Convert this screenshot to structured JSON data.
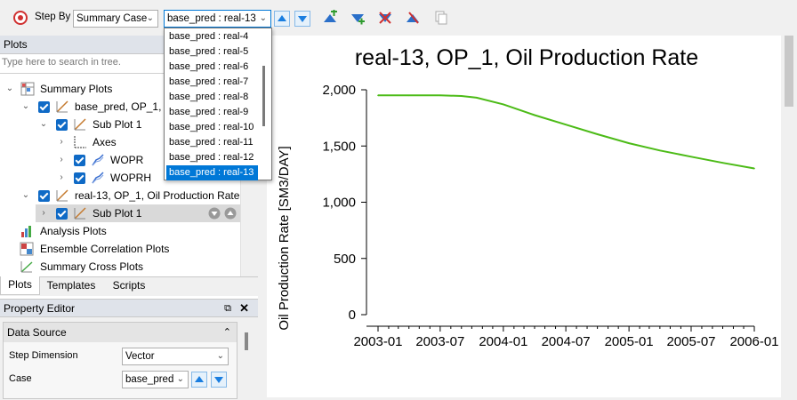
{
  "toolbar": {
    "step_by_label": "Step By",
    "step_by_value": "Summary Case",
    "case_value": "base_pred : real-13"
  },
  "case_dropdown": {
    "options": [
      "base_pred : real-4",
      "base_pred : real-5",
      "base_pred : real-6",
      "base_pred : real-7",
      "base_pred : real-8",
      "base_pred : real-9",
      "base_pred : real-10",
      "base_pred : real-11",
      "base_pred : real-12",
      "base_pred : real-13"
    ],
    "selected": "base_pred : real-13"
  },
  "plots_panel": {
    "title": "Plots",
    "search_placeholder": "Type here to search in tree.",
    "tree": {
      "summary_plots": "Summary Plots",
      "plot1": "base_pred, OP_1, O",
      "plot1_sub": "Sub Plot 1",
      "axes": "Axes",
      "wopr": "WOPR",
      "woprh": "WOPRH",
      "plot2": "real-13, OP_1, Oil Production Rate",
      "plot2_sub": "Sub Plot 1",
      "analysis": "Analysis Plots",
      "ensemble": "Ensemble Correlation Plots",
      "cross": "Summary Cross Plots"
    },
    "tabs": [
      "Plots",
      "Templates",
      "Scripts"
    ]
  },
  "property_editor": {
    "title": "Property Editor",
    "group": "Data Source",
    "step_dimension_label": "Step Dimension",
    "step_dimension_value": "Vector",
    "case_label": "Case",
    "case_value": "base_pred"
  },
  "colors": {
    "accent": "#0078d7",
    "checkbox": "#0f6ac6",
    "curve": "#4cbb17"
  },
  "chart_data": {
    "type": "line",
    "title": "real-13, OP_1, Oil Production Rate",
    "xlabel": "",
    "ylabel": "Oil Production Rate [SM3/DAY]",
    "x_tick_labels": [
      "2003-01",
      "2003-07",
      "2004-01",
      "2004-07",
      "2005-01",
      "2005-07",
      "2006-01"
    ],
    "y_tick_labels": [
      "2,000",
      "1,500",
      "1,000",
      "500",
      "0"
    ],
    "y_ticks": [
      2000,
      1500,
      1000,
      500,
      0
    ],
    "ylim": [
      0,
      2000
    ],
    "xlim": [
      "2003-01-01",
      "2006-01-01"
    ],
    "grid": false,
    "series": [
      {
        "x": [
          "2003-01-01",
          "2003-04-01",
          "2003-07-01",
          "2003-09-01",
          "2003-10-15",
          "2004-01-01",
          "2004-04-01",
          "2004-07-01",
          "2004-10-01",
          "2005-01-01",
          "2005-04-01",
          "2005-07-01",
          "2005-10-01",
          "2006-01-01"
        ],
        "y": [
          1950,
          1950,
          1950,
          1945,
          1930,
          1870,
          1775,
          1690,
          1605,
          1525,
          1460,
          1405,
          1350,
          1300
        ]
      }
    ]
  }
}
